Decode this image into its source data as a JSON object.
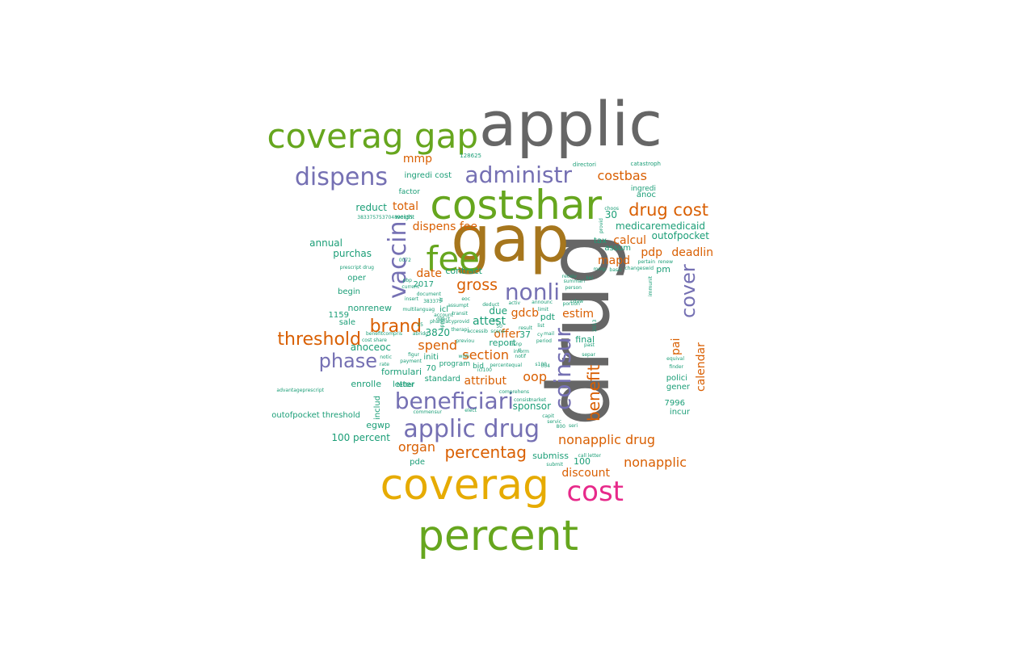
{
  "colors": {
    "gray": "#666666",
    "brown": "#A6761D",
    "green": "#66A61E",
    "gold": "#E6AB02",
    "magenta": "#E7298A",
    "purple": "#7570B3",
    "orange": "#D95F02",
    "teal": "#1B9E77"
  },
  "words": [
    {
      "text": "drug",
      "color": "gray"
    },
    {
      "text": "applic",
      "color": "gray"
    },
    {
      "text": "gap",
      "color": "brown"
    },
    {
      "text": "costshar",
      "color": "green"
    },
    {
      "text": "coverag gap",
      "color": "green"
    },
    {
      "text": "fee",
      "color": "green"
    },
    {
      "text": "percent",
      "color": "green"
    },
    {
      "text": "coverag",
      "color": "gold"
    },
    {
      "text": "cost",
      "color": "magenta"
    },
    {
      "text": "dispens",
      "color": "purple"
    },
    {
      "text": "administr",
      "color": "purple"
    },
    {
      "text": "vaccin",
      "color": "purple"
    },
    {
      "text": "nonli",
      "color": "purple"
    },
    {
      "text": "coinsur",
      "color": "purple"
    },
    {
      "text": "cover",
      "color": "purple"
    },
    {
      "text": "phase",
      "color": "purple"
    },
    {
      "text": "beneficiari",
      "color": "purple"
    },
    {
      "text": "applic drug",
      "color": "purple"
    },
    {
      "text": "drug cost",
      "color": "orange"
    },
    {
      "text": "costbas",
      "color": "orange"
    },
    {
      "text": "threshold",
      "color": "orange"
    },
    {
      "text": "brand",
      "color": "orange"
    },
    {
      "text": "gross",
      "color": "orange"
    },
    {
      "text": "benefit",
      "color": "orange"
    },
    {
      "text": "percentag",
      "color": "orange"
    },
    {
      "text": "nonapplic drug",
      "color": "orange"
    },
    {
      "text": "nonapplic",
      "color": "orange"
    },
    {
      "text": "discount",
      "color": "orange"
    },
    {
      "text": "calendar",
      "color": "orange"
    },
    {
      "text": "pai",
      "color": "orange"
    },
    {
      "text": "oop",
      "color": "orange"
    },
    {
      "text": "spend",
      "color": "orange"
    },
    {
      "text": "section",
      "color": "orange"
    },
    {
      "text": "attribut",
      "color": "orange"
    },
    {
      "text": "organ",
      "color": "orange"
    },
    {
      "text": "mapd",
      "color": "orange"
    },
    {
      "text": "pdp",
      "color": "orange"
    },
    {
      "text": "deadlin",
      "color": "orange"
    },
    {
      "text": "calcul",
      "color": "orange"
    },
    {
      "text": "estim",
      "color": "orange"
    },
    {
      "text": "gdcb",
      "color": "orange"
    },
    {
      "text": "offer",
      "color": "orange"
    },
    {
      "text": "date",
      "color": "orange"
    },
    {
      "text": "total",
      "color": "orange"
    },
    {
      "text": "dispens fee",
      "color": "orange"
    },
    {
      "text": "mmp",
      "color": "orange"
    },
    {
      "text": "medicaremedicaid",
      "color": "teal"
    },
    {
      "text": "outofpocket",
      "color": "teal"
    },
    {
      "text": "30",
      "color": "teal"
    },
    {
      "text": "reduct",
      "color": "teal"
    },
    {
      "text": "annual",
      "color": "teal"
    },
    {
      "text": "purchas",
      "color": "teal"
    },
    {
      "text": "oper",
      "color": "teal"
    },
    {
      "text": "begin",
      "color": "teal"
    },
    {
      "text": "nonrenew",
      "color": "teal"
    },
    {
      "text": "1159",
      "color": "teal"
    },
    {
      "text": "sale",
      "color": "teal"
    },
    {
      "text": "anoceoc",
      "color": "teal"
    },
    {
      "text": "formulari",
      "color": "teal"
    },
    {
      "text": "enrolle",
      "color": "teal"
    },
    {
      "text": "letter",
      "color": "teal"
    },
    {
      "text": "includ",
      "color": "teal"
    },
    {
      "text": "outofpocket threshold",
      "color": "teal"
    },
    {
      "text": "egwp",
      "color": "teal"
    },
    {
      "text": "100 percent",
      "color": "teal"
    },
    {
      "text": "pde",
      "color": "teal"
    },
    {
      "text": "standard",
      "color": "teal"
    },
    {
      "text": "70",
      "color": "teal"
    },
    {
      "text": "initi",
      "color": "teal"
    },
    {
      "text": "attest",
      "color": "teal"
    },
    {
      "text": "report",
      "color": "teal"
    },
    {
      "text": "3820",
      "color": "teal"
    },
    {
      "text": "2017",
      "color": "teal"
    },
    {
      "text": "contract",
      "color": "teal"
    },
    {
      "text": "icl",
      "color": "teal"
    },
    {
      "text": "due",
      "color": "teal"
    },
    {
      "text": "sponsor",
      "color": "teal"
    },
    {
      "text": "submiss",
      "color": "teal"
    },
    {
      "text": "100",
      "color": "teal"
    },
    {
      "text": "final",
      "color": "teal"
    },
    {
      "text": "polici",
      "color": "teal"
    },
    {
      "text": "gener",
      "color": "teal"
    },
    {
      "text": "7996",
      "color": "teal"
    },
    {
      "text": "incur",
      "color": "teal"
    },
    {
      "text": "pm",
      "color": "teal"
    },
    {
      "text": "tax",
      "color": "teal"
    },
    {
      "text": "assum",
      "color": "teal"
    },
    {
      "text": "pdt",
      "color": "teal"
    },
    {
      "text": "37",
      "color": "teal"
    },
    {
      "text": "anoc",
      "color": "teal"
    },
    {
      "text": "ingredi",
      "color": "teal"
    },
    {
      "text": "factor",
      "color": "teal"
    },
    {
      "text": "ingredi cost",
      "color": "teal"
    },
    {
      "text": "weight",
      "color": "teal"
    },
    {
      "text": "catastroph",
      "color": "teal"
    },
    {
      "text": "directori",
      "color": "teal"
    },
    {
      "text": "128625",
      "color": "teal"
    },
    {
      "text": "383375753704890655",
      "color": "teal"
    },
    {
      "text": "prescript drug",
      "color": "teal"
    },
    {
      "text": "program",
      "color": "teal"
    },
    {
      "text": "bid",
      "color": "teal"
    },
    {
      "text": "letter",
      "color": "teal"
    },
    {
      "text": "multilanguag",
      "color": "teal"
    },
    {
      "text": "document",
      "color": "teal"
    },
    {
      "text": "current",
      "color": "teal"
    },
    {
      "text": "eoc",
      "color": "teal"
    },
    {
      "text": "pharmacyprovid",
      "color": "teal"
    },
    {
      "text": "previou",
      "color": "teal"
    },
    {
      "text": "percentequal",
      "color": "teal"
    },
    {
      "text": "comprehens",
      "color": "teal"
    },
    {
      "text": "consist",
      "color": "teal"
    },
    {
      "text": "market",
      "color": "teal"
    },
    {
      "text": "elect",
      "color": "teal"
    },
    {
      "text": "capit",
      "color": "teal"
    },
    {
      "text": "servic",
      "color": "teal"
    },
    {
      "text": "seri",
      "color": "teal"
    },
    {
      "text": "submit",
      "color": "teal"
    },
    {
      "text": "call letter",
      "color": "teal"
    },
    {
      "text": "equival",
      "color": "teal"
    },
    {
      "text": "finder",
      "color": "teal"
    },
    {
      "text": "basic",
      "color": "teal"
    },
    {
      "text": "changeswid",
      "color": "teal"
    },
    {
      "text": "pertain",
      "color": "teal"
    },
    {
      "text": "renew",
      "color": "teal"
    },
    {
      "text": "summari",
      "color": "teal"
    },
    {
      "text": "person",
      "color": "teal"
    },
    {
      "text": "receiv",
      "color": "teal"
    },
    {
      "text": "announc",
      "color": "teal"
    },
    {
      "text": "deduct",
      "color": "teal"
    },
    {
      "text": "activ",
      "color": "teal"
    },
    {
      "text": "result",
      "color": "teal"
    },
    {
      "text": "limit",
      "color": "teal"
    },
    {
      "text": "mail",
      "color": "teal"
    },
    {
      "text": "period",
      "color": "teal"
    },
    {
      "text": "inform",
      "color": "teal"
    },
    {
      "text": "notif",
      "color": "teal"
    },
    {
      "text": "separ",
      "color": "teal"
    },
    {
      "text": "past",
      "color": "teal"
    },
    {
      "text": "2013",
      "color": "teal"
    },
    {
      "text": "choos",
      "color": "teal"
    },
    {
      "text": "provid",
      "color": "teal"
    },
    {
      "text": "cost share",
      "color": "teal"
    },
    {
      "text": "benefitcompris",
      "color": "teal"
    },
    {
      "text": "advantageprescript",
      "color": "teal"
    },
    {
      "text": "notic",
      "color": "teal"
    },
    {
      "text": "rate",
      "color": "teal"
    },
    {
      "text": "payment",
      "color": "teal"
    },
    {
      "text": "figur",
      "color": "teal"
    },
    {
      "text": "transit",
      "color": "teal"
    },
    {
      "text": "insert",
      "color": "teal"
    },
    {
      "text": "accessib",
      "color": "teal"
    },
    {
      "text": "portion",
      "color": "teal"
    },
    {
      "text": "wish",
      "color": "teal"
    },
    {
      "text": "icl100",
      "color": "teal"
    },
    {
      "text": "004",
      "color": "teal"
    },
    {
      "text": "0072",
      "color": "teal"
    },
    {
      "text": "383375",
      "color": "teal"
    },
    {
      "text": "assumpt",
      "color": "teal"
    },
    {
      "text": "account",
      "color": "teal"
    },
    {
      "text": "direct",
      "color": "teal"
    },
    {
      "text": "applic",
      "color": "teal"
    },
    {
      "text": "therapi",
      "color": "teal"
    },
    {
      "text": "pbp",
      "color": "teal"
    },
    {
      "text": "s100",
      "color": "teal"
    },
    {
      "text": "dsnp",
      "color": "teal"
    },
    {
      "text": "commensur",
      "color": "teal"
    },
    {
      "text": "abridg",
      "color": "teal"
    },
    {
      "text": "50",
      "color": "teal"
    },
    {
      "text": "immunit",
      "color": "teal"
    },
    {
      "text": "scena",
      "color": "teal"
    },
    {
      "text": "list",
      "color": "teal"
    },
    {
      "text": "cy",
      "color": "teal"
    },
    {
      "text": "mmp",
      "color": "teal"
    },
    {
      "text": "800",
      "color": "teal"
    },
    {
      "text": "kei",
      "color": "teal"
    },
    {
      "text": "cdaw",
      "color": "teal"
    },
    {
      "text": "25",
      "color": "teal"
    },
    {
      "text": "50",
      "color": "teal"
    },
    {
      "text": "ar",
      "color": "teal"
    },
    {
      "text": "il",
      "color": "teal"
    }
  ]
}
